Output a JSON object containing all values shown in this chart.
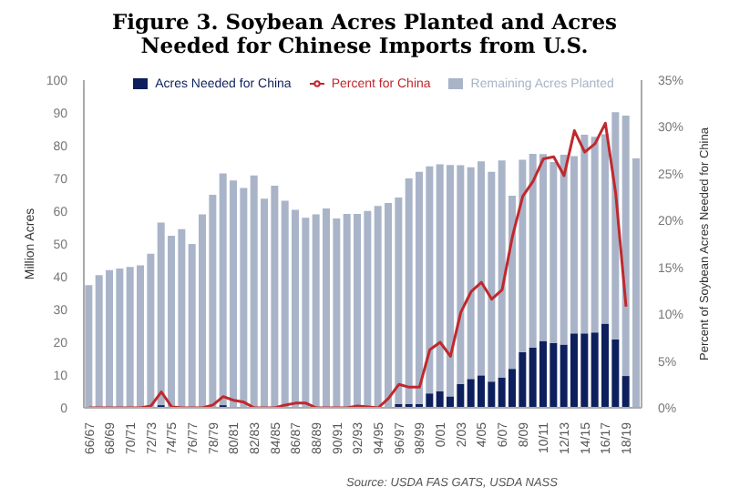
{
  "chart_data": {
    "type": "bar",
    "title": "Figure 3. Soybean Acres Planted and Acres Needed for Chinese Imports from U.S.",
    "ylabel": "Million Acres",
    "y2label": "Percent of Soybean Acres Needed for China",
    "annotations": [
      "Source: USDA FAS GATS, USDA NASS"
    ],
    "categories": [
      "66/67",
      null,
      "68/69",
      null,
      "70/71",
      null,
      "72/73",
      null,
      "74/75",
      null,
      "76/77",
      null,
      "78/79",
      null,
      "80/81",
      null,
      "82/83",
      null,
      "84/85",
      null,
      "86/87",
      null,
      "88/89",
      null,
      "90/91",
      null,
      "92/93",
      null,
      "94/95",
      null,
      "96/97",
      null,
      "98/99",
      null,
      "0/01",
      null,
      "2/03",
      null,
      "4/05",
      null,
      "6/07",
      null,
      "8/09",
      null,
      "10/11",
      null,
      "12/13",
      null,
      "14/15",
      null,
      "16/17",
      null,
      "18/19",
      null
    ],
    "stacked": true,
    "series": [
      {
        "name": "Acres Needed for China",
        "color": "#0d1f5c",
        "values": [
          0,
          0,
          0,
          0,
          0,
          0,
          0,
          0.8,
          0,
          0,
          0,
          0,
          0,
          0.8,
          null,
          null,
          0,
          0,
          0,
          0,
          0,
          0,
          0,
          0,
          0,
          0,
          0,
          0,
          0,
          0,
          1.2,
          1.2,
          1.2,
          4.4,
          5,
          3.5,
          7.3,
          8.8,
          9.9,
          8,
          9.2,
          11.9,
          17,
          18.4,
          20.4,
          19.8,
          19.3,
          22.7,
          22.7,
          23,
          25.7,
          20.9,
          9.7,
          0
        ]
      },
      {
        "name": "Remaining Acres Planted",
        "color": "#a9b4c8",
        "values": [
          37.4,
          40.5,
          42,
          42.5,
          43,
          43.5,
          47,
          55.7,
          52.5,
          54.5,
          50,
          59,
          65,
          70.7,
          69.4,
          67.1,
          70.9,
          63.8,
          67.8,
          63.2,
          60.4,
          58,
          59,
          60.8,
          57.8,
          59.2,
          59.2,
          60.1,
          61.6,
          62.5,
          63,
          68.8,
          70.8,
          69.3,
          69.3,
          70.6,
          66.7,
          64.6,
          65.3,
          64,
          66.3,
          52.8,
          58.7,
          59.1,
          57,
          55.2,
          57.9,
          54.1,
          60.6,
          59.7,
          57.8,
          69.3,
          79.5,
          76.1
        ]
      },
      {
        "name": "Percent for China",
        "type": "line",
        "axis": "y2",
        "color": "#c0282d",
        "values": [
          0,
          0,
          0,
          0,
          0,
          0,
          0.2,
          1.7,
          0.1,
          0,
          0,
          0,
          0.3,
          1.2,
          0.8,
          0.6,
          0,
          0,
          0,
          0.3,
          0.5,
          0.5,
          0,
          0,
          0,
          0,
          0.2,
          0.1,
          0,
          1,
          2.5,
          2.2,
          2.2,
          6.2,
          7,
          5.5,
          10.2,
          12.4,
          13.4,
          11.6,
          12.6,
          18.3,
          22.6,
          24.2,
          26.6,
          26.8,
          24.8,
          29.6,
          27.3,
          28.2,
          30.4,
          22.9,
          10.8,
          null
        ]
      }
    ],
    "ylim": [
      0,
      100
    ],
    "yticks": [
      0,
      10,
      20,
      30,
      40,
      50,
      60,
      70,
      80,
      90,
      100
    ],
    "y2lim": [
      0,
      35
    ],
    "y2ticks": [
      {
        "value": 0,
        "label": "0%"
      },
      {
        "value": 5,
        "label": "5%"
      },
      {
        "value": 10,
        "label": "10%"
      },
      {
        "value": 15,
        "label": "15%"
      },
      {
        "value": 20,
        "label": "20%"
      },
      {
        "value": 25,
        "label": "25%"
      },
      {
        "value": 30,
        "label": "30%"
      },
      {
        "value": 35,
        "label": "35%"
      }
    ],
    "legend": "top",
    "marker": "none",
    "line_style": "solid"
  }
}
